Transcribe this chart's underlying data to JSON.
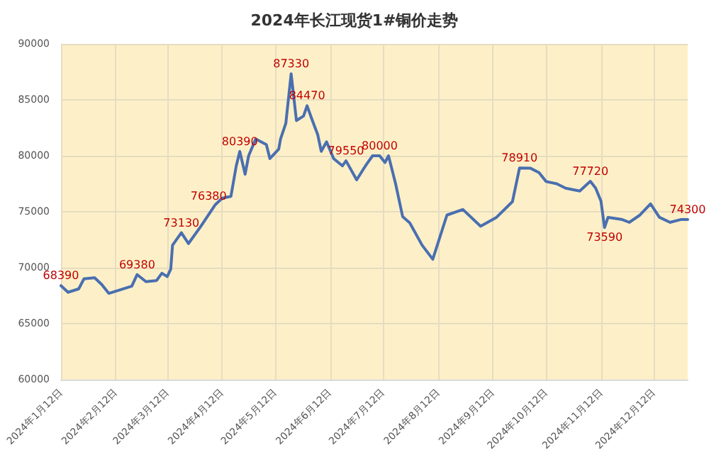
{
  "chart_data": {
    "type": "line",
    "title": "2024年长江现货1#铜价走势",
    "x": [
      "2024-01-12",
      "2024-01-16",
      "2024-01-22",
      "2024-01-25",
      "2024-01-31",
      "2024-02-04",
      "2024-02-08",
      "2024-02-21",
      "2024-02-24",
      "2024-02-29",
      "2024-03-06",
      "2024-03-09",
      "2024-03-12",
      "2024-03-14",
      "2024-03-15",
      "2024-03-20",
      "2024-03-24",
      "2024-03-31",
      "2024-04-08",
      "2024-04-12",
      "2024-04-17",
      "2024-04-20",
      "2024-04-22",
      "2024-04-25",
      "2024-04-27",
      "2024-05-01",
      "2024-05-07",
      "2024-05-09",
      "2024-05-14",
      "2024-05-15",
      "2024-05-18",
      "2024-05-21",
      "2024-05-24",
      "2024-05-28",
      "2024-05-30",
      "2024-06-02",
      "2024-06-05",
      "2024-06-07",
      "2024-06-10",
      "2024-06-14",
      "2024-06-19",
      "2024-06-21",
      "2024-06-27",
      "2024-07-02",
      "2024-07-06",
      "2024-07-10",
      "2024-07-13",
      "2024-07-15",
      "2024-07-19",
      "2024-07-23",
      "2024-07-27",
      "2024-08-03",
      "2024-08-09",
      "2024-08-17",
      "2024-08-26",
      "2024-09-05",
      "2024-09-14",
      "2024-09-23",
      "2024-09-27",
      "2024-10-03",
      "2024-10-08",
      "2024-10-12",
      "2024-10-18",
      "2024-10-23",
      "2024-10-31",
      "2024-11-06",
      "2024-11-09",
      "2024-11-12",
      "2024-11-14",
      "2024-11-16",
      "2024-11-24",
      "2024-11-28",
      "2024-12-04",
      "2024-12-10",
      "2024-12-15",
      "2024-12-21",
      "2024-12-27",
      "2024-12-31"
    ],
    "series": [
      {
        "color": "#4a6fb0",
        "values": [
          68390,
          67800,
          68100,
          69000,
          69100,
          68500,
          67700,
          68350,
          69380,
          68750,
          68850,
          69500,
          69200,
          69870,
          72000,
          73130,
          72150,
          73700,
          75600,
          76200,
          76380,
          79100,
          80390,
          78350,
          80000,
          81500,
          81000,
          79750,
          80600,
          81500,
          82900,
          87330,
          83150,
          83550,
          84470,
          83150,
          81900,
          80400,
          81250,
          79750,
          79100,
          79550,
          77850,
          79100,
          80000,
          80000,
          79400,
          80000,
          77500,
          74550,
          74000,
          72000,
          70750,
          74700,
          75200,
          73700,
          74500,
          75900,
          78910,
          78900,
          78500,
          77700,
          77500,
          77100,
          76850,
          77720,
          77100,
          75950,
          73590,
          74500,
          74300,
          74050,
          74700,
          75700,
          74500,
          74050,
          74300,
          74300
        ],
        "value_labels": [
          "68390",
          null,
          null,
          null,
          null,
          null,
          null,
          null,
          "69380",
          null,
          null,
          null,
          null,
          null,
          null,
          "73130",
          null,
          null,
          null,
          null,
          "76380",
          null,
          "80390",
          null,
          null,
          null,
          null,
          null,
          null,
          null,
          null,
          "87330",
          null,
          null,
          "84470",
          null,
          null,
          null,
          null,
          null,
          null,
          "79550",
          null,
          null,
          null,
          "80000",
          null,
          null,
          null,
          null,
          null,
          null,
          null,
          null,
          null,
          null,
          null,
          null,
          "78910",
          null,
          null,
          null,
          null,
          null,
          null,
          "77720",
          null,
          null,
          "73590",
          null,
          null,
          null,
          null,
          null,
          null,
          null,
          null,
          "74300"
        ]
      }
    ],
    "xlim": [
      "2024-01-12",
      "2024-12-31"
    ],
    "xticks": [
      {
        "value": "2024-01-12",
        "label": "2024年1月12日"
      },
      {
        "value": "2024-02-12",
        "label": "2024年2月12日"
      },
      {
        "value": "2024-03-12",
        "label": "2024年3月12日"
      },
      {
        "value": "2024-04-12",
        "label": "2024年4月12日"
      },
      {
        "value": "2024-05-12",
        "label": "2024年5月12日"
      },
      {
        "value": "2024-06-12",
        "label": "2024年6月12日"
      },
      {
        "value": "2024-07-12",
        "label": "2024年7月12日"
      },
      {
        "value": "2024-08-12",
        "label": "2024年8月12日"
      },
      {
        "value": "2024-09-12",
        "label": "2024年9月12日"
      },
      {
        "value": "2024-10-12",
        "label": "2024年10月12日"
      },
      {
        "value": "2024-11-12",
        "label": "2024年11月12日"
      },
      {
        "value": "2024-12-12",
        "label": "2024年12月12日"
      }
    ],
    "ylim": [
      60000,
      90000
    ],
    "yticks": [
      60000,
      65000,
      70000,
      75000,
      80000,
      85000,
      90000
    ],
    "grid": true,
    "marker": "none",
    "line_style": "solid"
  }
}
